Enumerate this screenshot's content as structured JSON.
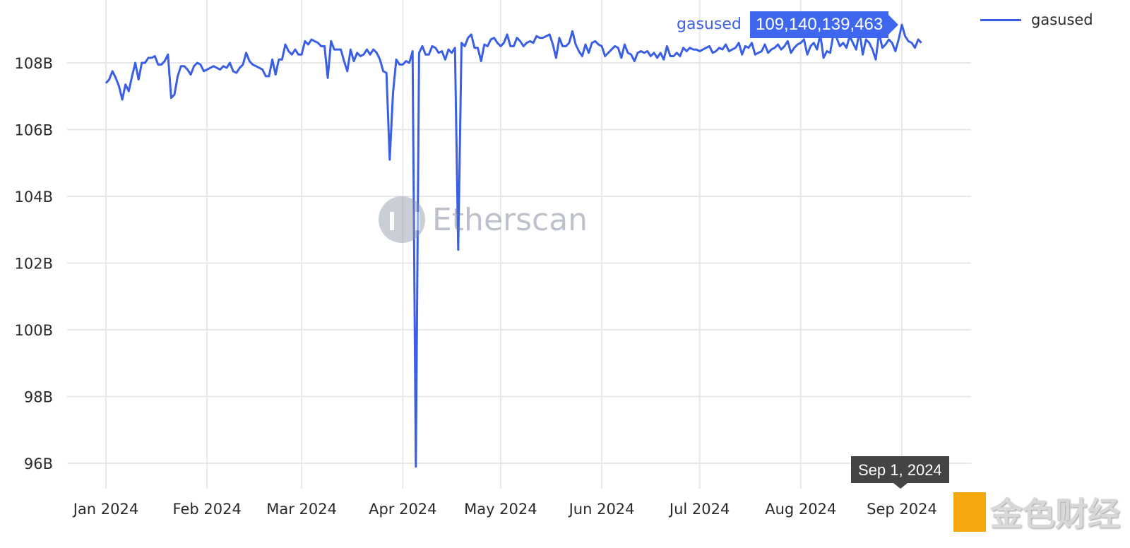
{
  "chart_data": {
    "type": "line",
    "title": "",
    "xlabel": "",
    "ylabel": "",
    "x_ticks": [
      "Jan 2024",
      "Feb 2024",
      "Mar 2024",
      "Apr 2024",
      "May 2024",
      "Jun 2024",
      "Jul 2024",
      "Aug 2024",
      "Sep 2024"
    ],
    "x_tick_dates": [
      "2024-01-01",
      "2024-02-01",
      "2024-03-01",
      "2024-04-01",
      "2024-05-01",
      "2024-06-01",
      "2024-07-01",
      "2024-08-01",
      "2024-09-01"
    ],
    "y_ticks": [
      96,
      98,
      100,
      102,
      104,
      106,
      108
    ],
    "y_tick_labels": [
      "96B",
      "98B",
      "100B",
      "102B",
      "104B",
      "106B",
      "108B"
    ],
    "y_unit": "billions",
    "grid": true,
    "legend_position": "top-right",
    "series": [
      {
        "name": "gasused",
        "color": "#3b5fe3",
        "values_by_month": {
          "2024-01": [
            107.39,
            107.5,
            107.75,
            107.55,
            107.3,
            106.9,
            107.35,
            107.15,
            107.6,
            108.0,
            107.5,
            108.0,
            108.0,
            108.15,
            108.15,
            108.2,
            107.95,
            107.95,
            108.05,
            108.25,
            106.95,
            107.05,
            107.6,
            107.9,
            107.9,
            107.8,
            107.65,
            107.9,
            108.0,
            107.95,
            107.75
          ],
          "2024-02": [
            107.8,
            107.85,
            107.9,
            107.85,
            107.8,
            107.9,
            107.85,
            108.0,
            107.75,
            107.7,
            107.85,
            107.95,
            108.3,
            108.05,
            107.95,
            107.9,
            107.85,
            107.8,
            107.6,
            107.6,
            108.1,
            107.65,
            108.1,
            108.1,
            108.55,
            108.35,
            108.25,
            108.4,
            108.25
          ],
          "2024-03": [
            108.25,
            108.65,
            108.55,
            108.7,
            108.65,
            108.6,
            108.5,
            108.5,
            107.55,
            108.65,
            108.4,
            108.4,
            108.4,
            108.05,
            107.75,
            108.4,
            108.05,
            108.3,
            108.2,
            108.25,
            108.4,
            108.25,
            108.4,
            108.3,
            108.1,
            107.75,
            107.7,
            105.1,
            107.1,
            108.1,
            107.95
          ],
          "2024-04": [
            107.95,
            108.05,
            108.0,
            108.35,
            95.9,
            108.3,
            108.5,
            108.25,
            108.25,
            108.5,
            108.45,
            108.3,
            108.35,
            108.1,
            108.4,
            108.3,
            108.45,
            102.4,
            108.6,
            108.5,
            108.75,
            108.85,
            108.45,
            108.45,
            108.05,
            108.55,
            108.5,
            108.7,
            108.75,
            108.6
          ],
          "2024-05": [
            108.5,
            108.6,
            108.85,
            108.5,
            108.5,
            108.75,
            108.65,
            108.5,
            108.6,
            108.65,
            108.6,
            108.8,
            108.75,
            108.75,
            108.8,
            108.85,
            108.55,
            108.15,
            108.75,
            108.5,
            108.5,
            108.6,
            108.95,
            108.55,
            108.35,
            108.2,
            108.55,
            108.3,
            108.6,
            108.65,
            108.55
          ],
          "2024-06": [
            108.5,
            108.2,
            108.3,
            108.4,
            108.5,
            108.45,
            108.15,
            108.55,
            108.3,
            108.25,
            108.05,
            108.3,
            108.35,
            108.3,
            108.35,
            108.2,
            108.3,
            108.15,
            108.3,
            108.1,
            108.5,
            108.2,
            108.2,
            108.3,
            108.2,
            108.45,
            108.35,
            108.45,
            108.4,
            108.4
          ],
          "2024-07": [
            108.35,
            108.4,
            108.45,
            108.5,
            108.3,
            108.35,
            108.45,
            108.4,
            108.55,
            108.35,
            108.4,
            108.45,
            108.6,
            108.25,
            108.5,
            108.45,
            108.6,
            108.25,
            108.3,
            108.35,
            108.55,
            108.3,
            108.4,
            108.45,
            108.55,
            108.4,
            108.5,
            108.65,
            108.3,
            108.45,
            108.55
          ],
          "2024-08": [
            108.6,
            108.7,
            108.25,
            108.5,
            108.6,
            108.4,
            108.85,
            108.15,
            108.35,
            108.3,
            108.85,
            108.75,
            108.5,
            108.6,
            108.45,
            108.8,
            108.6,
            108.4,
            108.95,
            108.25,
            108.7,
            108.6,
            108.4,
            108.1,
            108.9,
            108.45,
            108.55,
            108.7,
            108.6,
            108.35,
            108.7
          ],
          "2024-09": [
            109.14,
            108.8,
            108.65,
            108.6,
            108.45,
            108.7,
            108.6
          ]
        }
      }
    ],
    "hover": {
      "series_label": "gasused",
      "value_label": "109,140,139,463",
      "date_label": "Sep 1, 2024"
    }
  },
  "legend": {
    "label": "gasused"
  },
  "watermarks": {
    "etherscan": "Etherscan",
    "jinse": "金色财经"
  }
}
